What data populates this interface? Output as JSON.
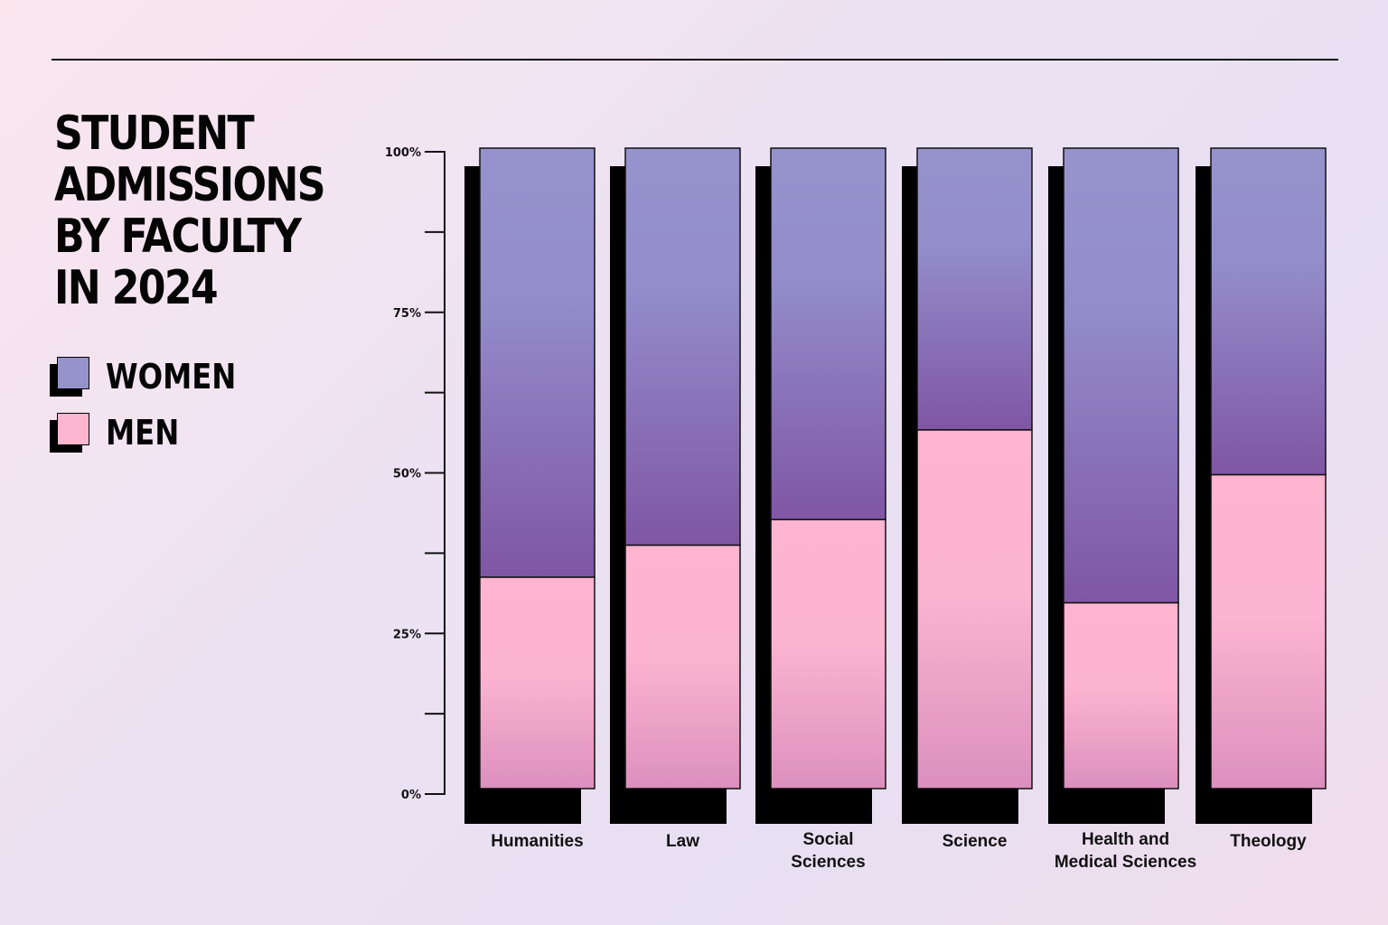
{
  "chart_data": {
    "type": "bar",
    "stacked": true,
    "percent": true,
    "title": "STUDENT ADMISSIONS\nBY FACULTY\nIN 2024",
    "categories": [
      "Humanities",
      "Law",
      "Social Sciences",
      "Science",
      "Health and Medical Sciences",
      "Theology"
    ],
    "category_lines": [
      [
        "Humanities"
      ],
      [
        "Law"
      ],
      [
        "Social",
        "Sciences"
      ],
      [
        "Science"
      ],
      [
        "Health and",
        "Medical Sciences"
      ],
      [
        "Theology"
      ]
    ],
    "series": [
      {
        "name": "MEN",
        "values": [
          33,
          38,
          42,
          56,
          29,
          49
        ],
        "color": "#fdb6d0"
      },
      {
        "name": "WOMEN",
        "values": [
          67,
          62,
          58,
          44,
          71,
          51
        ],
        "color": "#9693cc"
      }
    ],
    "ylim": [
      0,
      100
    ],
    "yticks": [
      0,
      25,
      50,
      75,
      100
    ],
    "ytick_labels": [
      "0%",
      "25%",
      "50%",
      "75%",
      "100%"
    ],
    "minor_ticks": [
      12.5,
      37.5,
      62.5,
      87.5
    ],
    "xlabel": "",
    "ylabel": "",
    "grid": false,
    "legend_placement": "left",
    "colors": {
      "women_top": "#9693cc",
      "women_bottom": "#7f56a4",
      "men_top": "#ffb4d0",
      "men_bottom": "#dc8fbe",
      "shadow": "#000000"
    }
  }
}
